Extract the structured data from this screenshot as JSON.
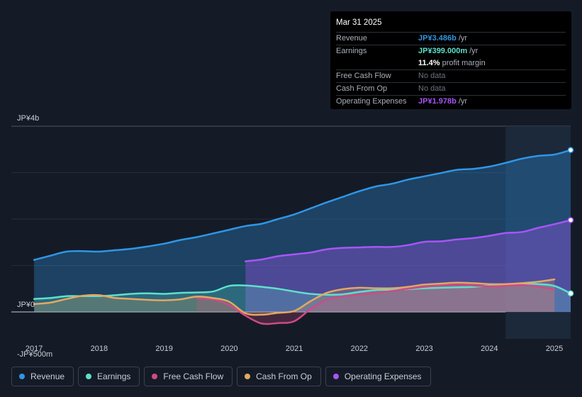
{
  "tooltip": {
    "date": "Mar 31 2025",
    "rows": [
      {
        "label": "Revenue",
        "value": "JP¥3.486b",
        "unit": "/yr",
        "color": "#2f96e6"
      },
      {
        "label": "Earnings",
        "value": "JP¥399.000m",
        "unit": "/yr",
        "color": "#5ee0cc"
      },
      {
        "label": "",
        "value": "11.4%",
        "unit": "profit margin",
        "color": "#ffffff"
      },
      {
        "label": "Free Cash Flow",
        "value": "No data",
        "unit": "",
        "color": "nodata"
      },
      {
        "label": "Cash From Op",
        "value": "No data",
        "unit": "",
        "color": "nodata"
      },
      {
        "label": "Operating Expenses",
        "value": "JP¥1.978b",
        "unit": "/yr",
        "color": "#a855f7"
      }
    ]
  },
  "legend": [
    {
      "name": "Revenue",
      "color": "#2f96e6"
    },
    {
      "name": "Earnings",
      "color": "#5ee0cc"
    },
    {
      "name": "Free Cash Flow",
      "color": "#d04a86"
    },
    {
      "name": "Cash From Op",
      "color": "#e3a861"
    },
    {
      "name": "Operating Expenses",
      "color": "#a855f7"
    }
  ],
  "chart_data": {
    "type": "line",
    "title": "",
    "xlabel": "",
    "ylabel": "",
    "ylim": [
      -500,
      4000
    ],
    "y_tick_labels": [
      {
        "value": 4000,
        "label": "JP¥4b"
      },
      {
        "value": 0,
        "label": "JP¥0"
      },
      {
        "value": -500,
        "label": "-JP¥500m"
      }
    ],
    "x_ticks": [
      "2017",
      "2018",
      "2019",
      "2020",
      "2021",
      "2022",
      "2023",
      "2024",
      "2025"
    ],
    "x_tick_values": [
      2017.0,
      2018.0,
      2019.0,
      2020.0,
      2021.0,
      2022.0,
      2023.0,
      2024.0,
      2025.0
    ],
    "xlim": [
      2016.65,
      2025.25
    ],
    "highlight_from": 2024.25,
    "series": [
      {
        "name": "Revenue",
        "color": "#2f96e6",
        "fill": true,
        "end_marker": true,
        "x": [
          2017.0,
          2017.25,
          2017.5,
          2017.75,
          2018.0,
          2018.25,
          2018.5,
          2018.75,
          2019.0,
          2019.25,
          2019.5,
          2019.75,
          2020.0,
          2020.25,
          2020.5,
          2020.75,
          2021.0,
          2021.25,
          2021.5,
          2021.75,
          2022.0,
          2022.25,
          2022.5,
          2022.75,
          2023.0,
          2023.25,
          2023.5,
          2023.75,
          2024.0,
          2024.25,
          2024.5,
          2024.75,
          2025.0,
          2025.25
        ],
        "values": [
          1120,
          1210,
          1300,
          1310,
          1300,
          1330,
          1360,
          1410,
          1470,
          1550,
          1610,
          1690,
          1770,
          1850,
          1900,
          2000,
          2100,
          2230,
          2360,
          2480,
          2600,
          2700,
          2760,
          2850,
          2920,
          2990,
          3060,
          3080,
          3130,
          3210,
          3300,
          3360,
          3390,
          3486
        ]
      },
      {
        "name": "Operating Expenses",
        "color": "#a855f7",
        "fill": true,
        "end_marker": true,
        "x": [
          2020.25,
          2020.5,
          2020.75,
          2021.0,
          2021.25,
          2021.5,
          2021.75,
          2022.0,
          2022.25,
          2022.5,
          2022.75,
          2023.0,
          2023.25,
          2023.5,
          2023.75,
          2024.0,
          2024.25,
          2024.5,
          2024.75,
          2025.0,
          2025.25
        ],
        "values": [
          1090,
          1130,
          1200,
          1240,
          1280,
          1350,
          1380,
          1390,
          1400,
          1400,
          1440,
          1510,
          1520,
          1560,
          1590,
          1640,
          1700,
          1720,
          1810,
          1890,
          1978
        ]
      },
      {
        "name": "Earnings",
        "color": "#5ee0cc",
        "fill": true,
        "end_marker": true,
        "x": [
          2017.0,
          2017.25,
          2017.5,
          2017.75,
          2018.0,
          2018.25,
          2018.5,
          2018.75,
          2019.0,
          2019.25,
          2019.5,
          2019.75,
          2020.0,
          2020.25,
          2020.5,
          2020.75,
          2021.0,
          2021.25,
          2021.5,
          2021.75,
          2022.0,
          2022.25,
          2022.5,
          2022.75,
          2023.0,
          2023.25,
          2023.5,
          2023.75,
          2024.0,
          2024.25,
          2024.5,
          2024.75,
          2025.0,
          2025.25
        ],
        "values": [
          280,
          300,
          340,
          340,
          340,
          360,
          390,
          400,
          390,
          410,
          420,
          440,
          560,
          570,
          540,
          500,
          440,
          390,
          370,
          380,
          430,
          470,
          480,
          490,
          510,
          520,
          530,
          540,
          570,
          590,
          610,
          600,
          560,
          399
        ]
      },
      {
        "name": "Free Cash Flow",
        "color": "#d04a86",
        "fill": true,
        "end_marker": false,
        "x": [
          2019.5,
          2019.75,
          2020.0,
          2020.25,
          2020.5,
          2020.75,
          2021.0,
          2021.25,
          2021.5,
          2021.75,
          2022.0,
          2022.25,
          2022.5,
          2022.75,
          2023.0,
          2023.25,
          2023.5,
          2023.75,
          2024.0,
          2024.25,
          2024.5,
          2024.75,
          2025.0
        ],
        "values": [
          300,
          270,
          150,
          -80,
          -250,
          -240,
          -200,
          60,
          260,
          330,
          370,
          410,
          450,
          500,
          540,
          570,
          580,
          570,
          550,
          560,
          580,
          540,
          480
        ]
      },
      {
        "name": "Cash From Op",
        "color": "#e3a861",
        "fill": true,
        "end_marker": false,
        "x": [
          2017.0,
          2017.25,
          2017.5,
          2017.75,
          2018.0,
          2018.25,
          2018.5,
          2018.75,
          2019.0,
          2019.25,
          2019.5,
          2019.75,
          2020.0,
          2020.25,
          2020.5,
          2020.75,
          2021.0,
          2021.25,
          2021.5,
          2021.75,
          2022.0,
          2022.25,
          2022.5,
          2022.75,
          2023.0,
          2023.25,
          2023.5,
          2023.75,
          2024.0,
          2024.25,
          2024.5,
          2024.75,
          2025.0
        ],
        "values": [
          170,
          200,
          280,
          350,
          360,
          300,
          280,
          260,
          250,
          270,
          330,
          300,
          220,
          -30,
          -60,
          -20,
          20,
          230,
          410,
          490,
          520,
          510,
          510,
          540,
          590,
          610,
          630,
          620,
          600,
          600,
          620,
          650,
          700
        ]
      }
    ]
  }
}
